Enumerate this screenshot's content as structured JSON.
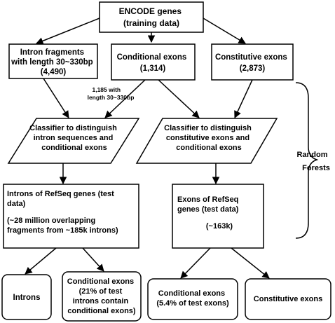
{
  "nodes": {
    "encode": [
      "ENCODE genes",
      "(training data)"
    ],
    "intron_fragments": [
      "Intron fragments",
      "with length 30~330bp",
      "(4,490)"
    ],
    "conditional_exons": [
      "Conditional exons",
      "(1,314)"
    ],
    "constitutive_exons": [
      "Constitutive exons",
      "(2,873)"
    ],
    "classifier_intron": [
      "Classifier to distinguish",
      "intron sequences and",
      "conditional exons"
    ],
    "classifier_constitutive": [
      "Classifier to distinguish",
      "constitutive exons and",
      "conditional exons"
    ],
    "introns_refseq": [
      "Introns of RefSeq genes (test",
      "data)",
      "(~28 million overlapping",
      "fragments from ~185k introns)"
    ],
    "exons_refseq": [
      "Exons of RefSeq",
      "genes (test data)",
      "(~163k)"
    ],
    "introns": [
      "Introns"
    ],
    "conditional_exons_result": [
      "Conditional exons",
      "(21% of test",
      "introns contain",
      "conditional exons)"
    ],
    "conditional_exons_result2": [
      "Conditional exons",
      "(5.4% of test exons)"
    ],
    "constitutive_exons_result": [
      "Constitutive exons"
    ]
  },
  "annotations": {
    "subset": [
      "1,185 with",
      "length 30~330bp"
    ],
    "bracket_label": [
      "Random",
      "Forests"
    ]
  }
}
